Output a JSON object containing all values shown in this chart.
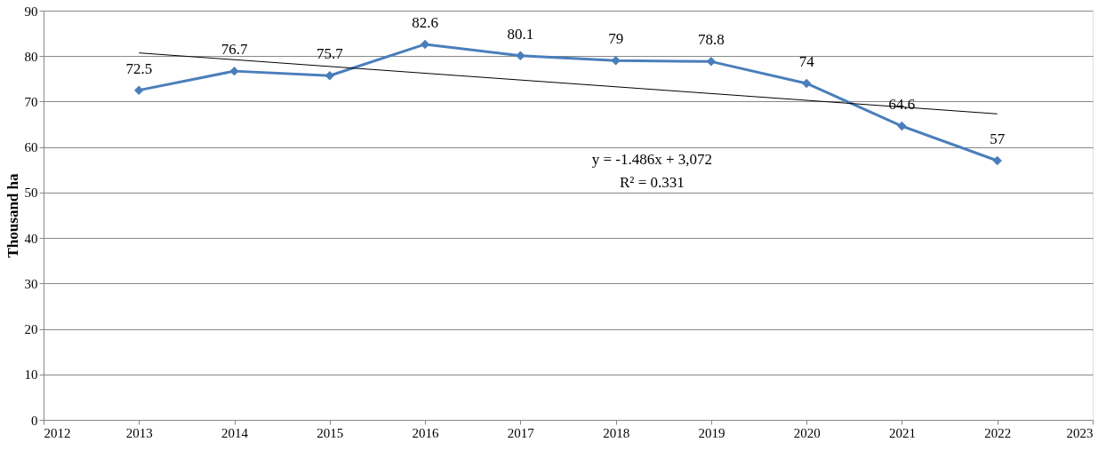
{
  "chart_data": {
    "type": "line",
    "ylabel": "Thousand ha",
    "x": [
      2013,
      2014,
      2015,
      2016,
      2017,
      2018,
      2019,
      2020,
      2021,
      2022
    ],
    "series": [
      {
        "color": "#4a7ebb",
        "values": [
          72.5,
          76.7,
          75.7,
          82.6,
          80.1,
          79,
          78.8,
          74,
          64.6,
          57
        ],
        "marker": "diamond",
        "data_labels": true
      },
      {
        "type": "line",
        "color": "#000000",
        "x": [
          2013,
          2022
        ],
        "values": [
          80.7,
          67.3
        ],
        "marker": "none"
      }
    ],
    "annotations": [
      "y = -1.486x + 3,072",
      "R² = 0.331"
    ],
    "xlim": [
      2012,
      2023
    ],
    "xticks": [
      2012,
      2013,
      2014,
      2015,
      2016,
      2017,
      2018,
      2019,
      2020,
      2021,
      2022,
      2023
    ],
    "ylim": [
      0,
      90
    ],
    "yticks": [
      0,
      10,
      20,
      30,
      40,
      50,
      60,
      70,
      80,
      90
    ],
    "grid": "y",
    "line_style": "solid"
  }
}
